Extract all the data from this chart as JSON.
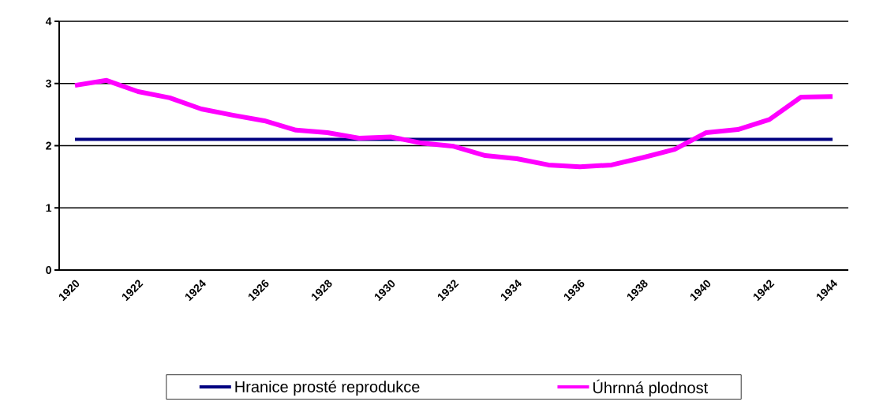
{
  "chart_data": {
    "type": "line",
    "categories": [
      "1920",
      null,
      "1922",
      null,
      "1924",
      null,
      "1926",
      null,
      "1928",
      null,
      "1930",
      null,
      "1932",
      null,
      "1934",
      null,
      "1936",
      null,
      "1938",
      null,
      "1940",
      null,
      "1942",
      null,
      "1944"
    ],
    "series": [
      {
        "name": "Hranice prosté reprodukce",
        "color": "#000080",
        "values": [
          2.1,
          2.1,
          2.1,
          2.1,
          2.1,
          2.1,
          2.1,
          2.1,
          2.1,
          2.1,
          2.1,
          2.1,
          2.1,
          2.1,
          2.1,
          2.1,
          2.1,
          2.1,
          2.1,
          2.1,
          2.1,
          2.1,
          2.1,
          2.1,
          2.1
        ]
      },
      {
        "name": "Úhrnná plodnost",
        "color": "#ff00ff",
        "values": [
          2.97,
          3.05,
          2.87,
          2.77,
          2.59,
          2.49,
          2.4,
          2.25,
          2.21,
          2.12,
          2.14,
          2.04,
          1.99,
          1.84,
          1.79,
          1.69,
          1.66,
          1.69,
          1.81,
          1.94,
          2.21,
          2.26,
          2.42,
          2.78,
          2.79
        ]
      }
    ],
    "ylim": [
      0,
      4
    ],
    "yticks": [
      0,
      1,
      2,
      3,
      4
    ],
    "grid": "y",
    "legend": "bottom",
    "marker": "none",
    "line_style": "solid"
  }
}
